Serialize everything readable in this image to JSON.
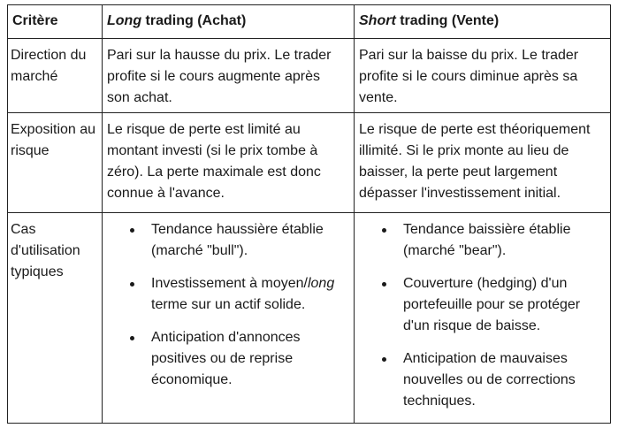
{
  "header": {
    "col1": "Critère",
    "col2_italic": "Long",
    "col2_rest": " trading (Achat)",
    "col3_italic": "Short",
    "col3_rest": " trading (Vente)"
  },
  "rows": [
    {
      "label": [
        "Direction du",
        "marché"
      ],
      "long": [
        "Pari sur la hausse du prix. Le trader",
        "profite si le cours augmente après",
        "son achat."
      ],
      "short": [
        "Pari sur la baisse du prix. Le trader",
        "profite si le cours diminue après sa",
        "vente."
      ]
    },
    {
      "label": [
        "Exposition au",
        "risque"
      ],
      "long": [
        "Le risque de perte est limité au",
        "montant investi (si le prix tombe à",
        "zéro). La perte maximale est donc",
        "connue à l'avance."
      ],
      "short": [
        "Le risque de perte est théoriquement",
        "illimité. Si le prix monte au lieu de",
        "baisser, la perte peut largement",
        "dépasser l'investissement initial."
      ]
    },
    {
      "label": [
        "Cas",
        "d'utilisation",
        "typiques"
      ],
      "long": [
        [
          "Tendance haussière établie",
          "(marché \"bull\")."
        ],
        [
          "Investissement à moyen/",
          "terme sur un actif solide."
        ],
        [
          "Anticipation d'annonces",
          "positives ou de reprise",
          "économique."
        ]
      ],
      "long_italic_word": "long",
      "short": [
        [
          "Tendance baissière établie",
          "(marché \"bear\")."
        ],
        [
          "Couverture (hedging) d'un",
          "portefeuille pour se protéger",
          "d'un risque de baisse."
        ],
        [
          "Anticipation de mauvaises",
          "nouvelles ou de corrections",
          "techniques."
        ]
      ]
    }
  ]
}
